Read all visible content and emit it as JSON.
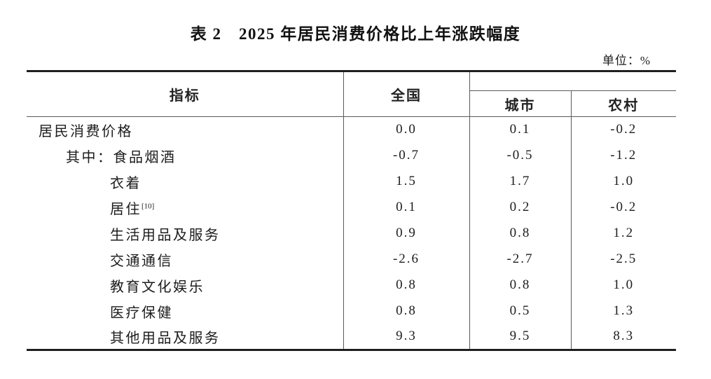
{
  "title": "表 2　2025 年居民消费价格比上年涨跌幅度",
  "unit_label": "单位：%",
  "table": {
    "col_indicator": "指标",
    "col_national": "全国",
    "col_city": "城市",
    "col_rural": "农村",
    "rows": [
      {
        "label": "居民消费价格",
        "sup": "",
        "national": "0.0",
        "city": "0.1",
        "rural": "-0.2"
      },
      {
        "label": "其中：食品烟酒",
        "sup": "",
        "national": "-0.7",
        "city": "-0.5",
        "rural": "-1.2"
      },
      {
        "label": "衣着",
        "sup": "",
        "national": "1.5",
        "city": "1.7",
        "rural": "1.0"
      },
      {
        "label": "居住",
        "sup": "[10]",
        "national": "0.1",
        "city": "0.2",
        "rural": "-0.2"
      },
      {
        "label": "生活用品及服务",
        "sup": "",
        "national": "0.9",
        "city": "0.8",
        "rural": "1.2"
      },
      {
        "label": "交通通信",
        "sup": "",
        "national": "-2.6",
        "city": "-2.7",
        "rural": "-2.5"
      },
      {
        "label": "教育文化娱乐",
        "sup": "",
        "national": "0.8",
        "city": "0.8",
        "rural": "1.0"
      },
      {
        "label": "医疗保健",
        "sup": "",
        "national": "0.8",
        "city": "0.5",
        "rural": "1.3"
      },
      {
        "label": "其他用品及服务",
        "sup": "",
        "national": "9.3",
        "city": "9.5",
        "rural": "8.3"
      }
    ]
  }
}
